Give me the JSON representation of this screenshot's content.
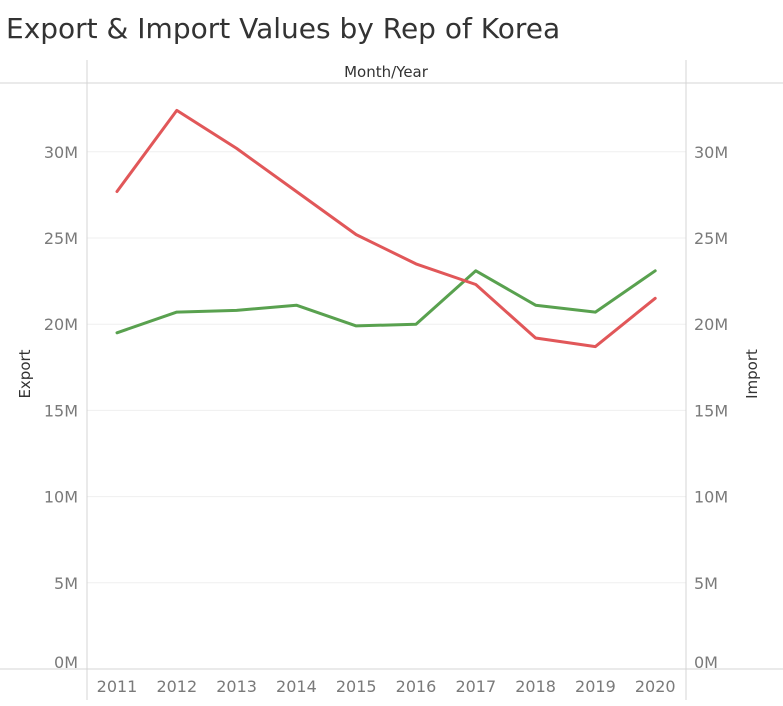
{
  "chart_data": {
    "type": "line",
    "title": "Export & Import Values by Rep of Korea",
    "xlabel": "Month/Year",
    "ylabel_left": "Export",
    "ylabel_right": "Import",
    "categories": [
      "2011",
      "2012",
      "2013",
      "2014",
      "2015",
      "2016",
      "2017",
      "2018",
      "2019",
      "2020"
    ],
    "y_ticks": [
      "0M",
      "5M",
      "10M",
      "15M",
      "20M",
      "25M",
      "30M"
    ],
    "ylim": [
      0,
      34000000
    ],
    "grid": true,
    "series": [
      {
        "axis": "left",
        "color": "#59a14f",
        "values": [
          19500000,
          20700000,
          20800000,
          21100000,
          19900000,
          20000000,
          23100000,
          21100000,
          20700000,
          23100000
        ]
      },
      {
        "axis": "right",
        "color": "#e15759",
        "values": [
          27700000,
          32400000,
          30200000,
          27700000,
          25200000,
          23500000,
          22300000,
          19200000,
          18700000,
          21500000
        ]
      }
    ]
  }
}
